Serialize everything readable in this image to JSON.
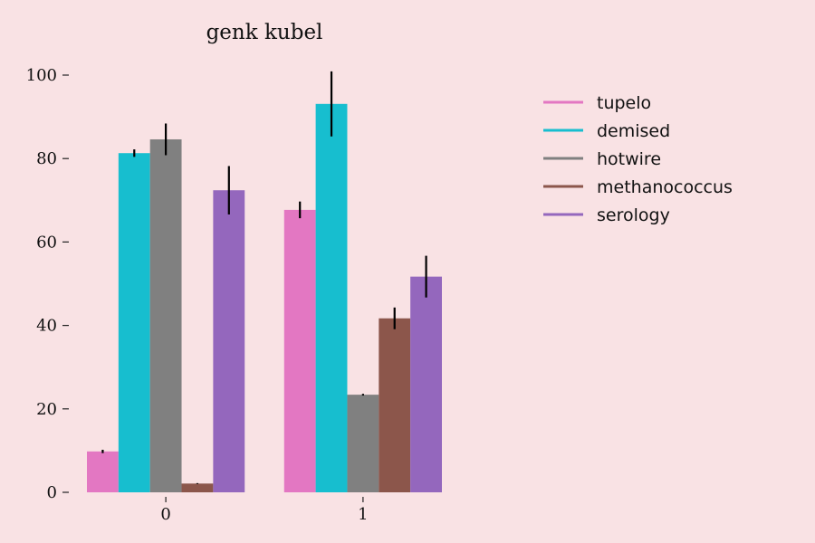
{
  "chart_data": {
    "type": "bar",
    "title": "genk kubel",
    "xlabel": "",
    "ylabel": "",
    "categories": [
      "0",
      "1"
    ],
    "ylim": [
      0,
      100
    ],
    "yticks": [
      0,
      20,
      40,
      60,
      80,
      100
    ],
    "grid": false,
    "legend_position": "right",
    "series": [
      {
        "name": "tupelo",
        "color": "#e377c2",
        "values": [
          9.8,
          67.7
        ],
        "errors": [
          0.4,
          2.0
        ]
      },
      {
        "name": "demised",
        "color": "#17becf",
        "values": [
          81.3,
          93.1
        ],
        "errors": [
          0.9,
          7.8
        ]
      },
      {
        "name": "hotwire",
        "color": "#808080",
        "values": [
          84.6,
          23.4
        ],
        "errors": [
          3.8,
          0.2
        ]
      },
      {
        "name": "methanococcus",
        "color": "#8c564b",
        "values": [
          2.1,
          41.7
        ],
        "errors": [
          0.1,
          2.6
        ]
      },
      {
        "name": "serology",
        "color": "#9467bd",
        "values": [
          72.4,
          51.7
        ],
        "errors": [
          5.8,
          5.0
        ]
      }
    ]
  }
}
